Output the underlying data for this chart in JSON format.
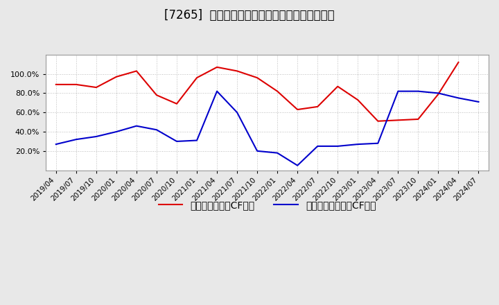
{
  "title": "[7265]  有利子負債キャッシュフロー比率の推移",
  "legend_red": "有利子負債営業CF比率",
  "legend_blue": "有利子負債フリーCF比率",
  "x_labels": [
    "2019/04",
    "2019/07",
    "2019/10",
    "2020/01",
    "2020/04",
    "2020/07",
    "2020/10",
    "2021/01",
    "2021/04",
    "2021/07",
    "2021/10",
    "2022/01",
    "2022/04",
    "2022/07",
    "2022/10",
    "2023/01",
    "2023/04",
    "2023/07",
    "2023/10",
    "2024/01",
    "2024/04",
    "2024/07"
  ],
  "red_values": [
    0.89,
    0.89,
    0.86,
    0.97,
    1.03,
    0.78,
    0.69,
    0.96,
    1.07,
    1.03,
    0.96,
    0.82,
    0.63,
    0.66,
    0.87,
    0.73,
    0.51,
    0.52,
    0.53,
    0.79,
    1.12,
    null
  ],
  "blue_values": [
    0.27,
    0.32,
    0.35,
    0.4,
    0.46,
    0.42,
    0.3,
    0.31,
    0.82,
    0.6,
    0.2,
    0.18,
    0.05,
    0.25,
    0.25,
    0.27,
    0.28,
    0.82,
    0.82,
    0.8,
    0.75,
    0.71
  ],
  "bg_color": "#e8e8e8",
  "plot_bg_color": "#ffffff",
  "red_color": "#dd0000",
  "blue_color": "#0000cc",
  "grid_color": "#bbbbbb",
  "ylim": [
    0.0,
    1.2
  ],
  "yticks": [
    0.2,
    0.4,
    0.6,
    0.8,
    1.0
  ],
  "title_fontsize": 12
}
